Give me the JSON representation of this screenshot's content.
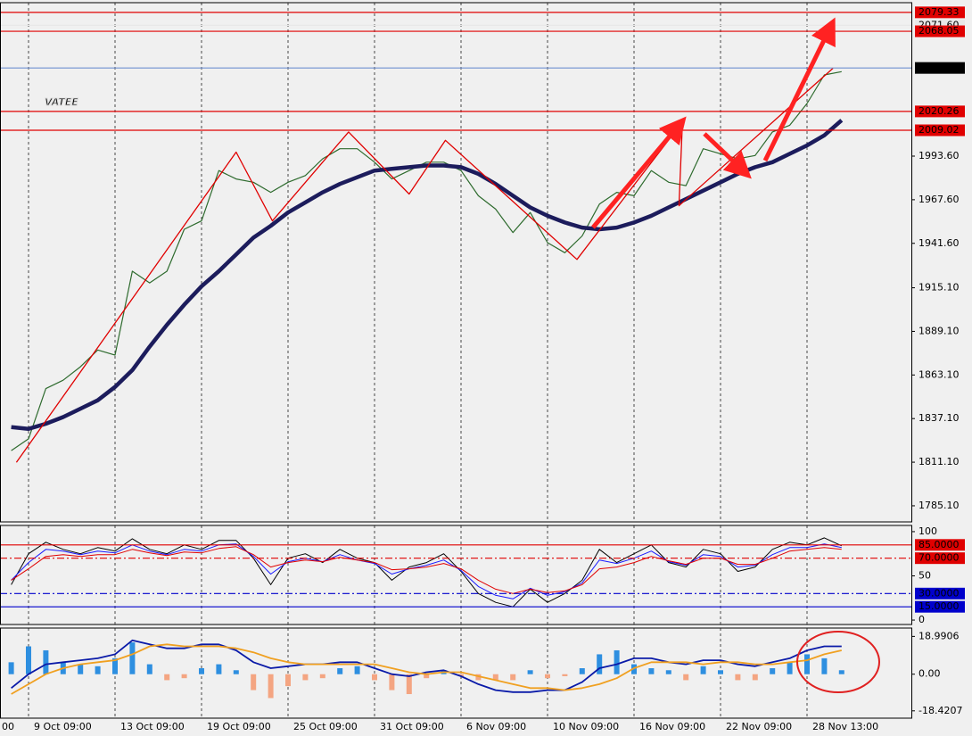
{
  "chart_data": [
    {
      "type": "line",
      "watermark": "VATEE",
      "ylim": [
        1775.5,
        2085.1
      ],
      "yticks": [
        {
          "value": 1785.1,
          "label": "1785.10"
        },
        {
          "value": 1811.1,
          "label": "1811.10"
        },
        {
          "value": 1837.1,
          "label": "1837.10"
        },
        {
          "value": 1863.1,
          "label": "1863.10"
        },
        {
          "value": 1889.1,
          "label": "1889.10"
        },
        {
          "value": 1915.1,
          "label": "1915.10"
        },
        {
          "value": 1941.6,
          "label": "1941.60"
        },
        {
          "value": 1967.6,
          "label": "1967.60"
        },
        {
          "value": 1993.6,
          "label": "1993.60"
        }
      ],
      "levels": [
        {
          "value": 2071.6,
          "label": "2071.60",
          "color": "#e8e8e8",
          "text_color": "#555555"
        },
        {
          "value": 2079.33,
          "color": "#e00000"
        },
        {
          "value": 2068.05,
          "color": "#e00000"
        },
        {
          "value": 2046.18,
          "color": "#000000",
          "line_color": "#6f8fd0"
        },
        {
          "value": 2020.26,
          "color": "#e00000"
        },
        {
          "value": 2009.02,
          "color": "#e00000"
        }
      ],
      "series": [
        {
          "color": "#2e6b2e",
          "width": 1.2,
          "values": [
            null,
            null,
            null,
            null,
            1818,
            1825,
            1855,
            1860,
            1868,
            1878,
            1875,
            1925,
            1918,
            1925,
            1950,
            1955,
            1985,
            1980,
            1978,
            1972,
            1978,
            1982,
            1992,
            1998,
            1998,
            1990,
            1980,
            1985,
            1990,
            1990,
            1985,
            1970,
            1962,
            1948,
            1960,
            1942,
            1936,
            1946,
            1965,
            1972,
            1970,
            1985,
            1978,
            1976,
            1998,
            1995,
            1992,
            1994,
            2008,
            2012,
            2025,
            2042,
            2044
          ]
        },
        {
          "color": "#1c1c5c",
          "width": 4.5,
          "values": [
            null,
            null,
            null,
            null,
            1832,
            1831,
            1834,
            1838,
            1843,
            1848,
            1856,
            1866,
            1880,
            1893,
            1905,
            1916,
            1925,
            1935,
            1945,
            1952,
            1960,
            1966,
            1972,
            1977,
            1981,
            1985,
            1986,
            1987,
            1988,
            1988,
            1987,
            1983,
            1977,
            1970,
            1963,
            1958,
            1954,
            1951,
            1950,
            1951,
            1954,
            1958,
            1963,
            1968,
            1973,
            1978,
            1983,
            1987,
            1990,
            1995,
            2000,
            2006,
            2015
          ]
        },
        {
          "color": "#e00000",
          "width": 1.3,
          "x": [
            4.3,
            17,
            19.1,
            23.5,
            27,
            29.1,
            36.7,
            42.8,
            42.6,
            51.5
          ],
          "values": [
            1811,
            1996,
            1955,
            2008,
            1971,
            2003,
            1932,
            2014,
            1964,
            2046
          ]
        }
      ]
    },
    {
      "type": "line",
      "ylim": [
        -5,
        107
      ],
      "yticks": [
        0,
        50,
        100
      ],
      "levels": [
        {
          "value": 85,
          "label": "85.0000",
          "color": "#e00000",
          "style": "solid"
        },
        {
          "value": 70,
          "label": "70.0000",
          "color": "#e00000",
          "style": "dashdot"
        },
        {
          "value": 30,
          "label": "30.0000",
          "color": "#0000cc",
          "style": "dashdot"
        },
        {
          "value": 15,
          "label": "15.0000",
          "color": "#0000cc",
          "style": "solid"
        }
      ],
      "series": [
        {
          "color": "#000000",
          "width": 1,
          "values": [
            null,
            null,
            null,
            null,
            40,
            75,
            88,
            80,
            75,
            82,
            78,
            92,
            80,
            75,
            85,
            80,
            90,
            90,
            70,
            40,
            70,
            75,
            65,
            80,
            70,
            65,
            45,
            60,
            65,
            75,
            55,
            30,
            20,
            15,
            35,
            20,
            30,
            45,
            80,
            65,
            75,
            85,
            65,
            60,
            80,
            75,
            55,
            60,
            80,
            88,
            85,
            93,
            84
          ]
        },
        {
          "color": "#1a1aff",
          "width": 1,
          "values": [
            null,
            null,
            null,
            null,
            45,
            65,
            80,
            78,
            74,
            78,
            76,
            85,
            78,
            74,
            80,
            78,
            85,
            86,
            72,
            52,
            66,
            70,
            66,
            74,
            68,
            64,
            52,
            58,
            62,
            68,
            56,
            38,
            28,
            24,
            36,
            28,
            32,
            42,
            68,
            64,
            70,
            78,
            66,
            62,
            74,
            72,
            60,
            62,
            74,
            82,
            82,
            86,
            82
          ]
        },
        {
          "color": "#e00000",
          "width": 1,
          "values": [
            null,
            null,
            null,
            null,
            45,
            58,
            72,
            74,
            72,
            74,
            74,
            80,
            76,
            73,
            77,
            76,
            81,
            83,
            74,
            60,
            65,
            68,
            66,
            71,
            68,
            65,
            57,
            58,
            60,
            64,
            58,
            45,
            35,
            30,
            35,
            31,
            33,
            40,
            58,
            60,
            65,
            72,
            67,
            63,
            70,
            70,
            63,
            63,
            70,
            78,
            80,
            82,
            80
          ]
        }
      ]
    },
    {
      "type": "bar",
      "ylim": [
        -22.1,
        23.2
      ],
      "yticks": [
        -18.4207,
        {
          "value": 0,
          "label": "0.00"
        },
        18.9906
      ],
      "categories": [
        "00",
        null,
        null,
        null,
        null,
        "9 Oct 09:00",
        null,
        null,
        null,
        null,
        "13 Oct 09:00",
        null,
        null,
        null,
        null,
        "19 Oct 09:00",
        null,
        null,
        null,
        null,
        "25 Oct 09:00",
        null,
        null,
        null,
        null,
        "31 Oct 09:00",
        null,
        null,
        null,
        null,
        "6 Nov 09:00",
        null,
        null,
        null,
        null,
        "10 Nov 09:00",
        null,
        null,
        null,
        null,
        "16 Nov 09:00",
        null,
        null,
        null,
        null,
        "22 Nov 09:00",
        null,
        null,
        null,
        null,
        "28 Nov 13:00",
        null,
        null
      ],
      "series": [
        {
          "type": "bar",
          "color": "#2e8fe0",
          "negative_color": "#f4a582",
          "values": [
            null,
            null,
            null,
            null,
            6,
            14,
            12,
            6,
            5,
            4,
            8,
            16,
            5,
            -3,
            -2,
            3,
            5,
            2,
            -8,
            -12,
            -6,
            -3,
            -2,
            3,
            4,
            -3,
            -8,
            -10,
            -2,
            2,
            -1,
            -3,
            -3,
            -3,
            2,
            -2,
            -1,
            3,
            10,
            12,
            5,
            3,
            2,
            -3,
            4,
            2,
            -3,
            -3,
            3,
            6,
            10,
            8,
            2
          ]
        },
        {
          "type": "line",
          "color": "#0a1aa8",
          "width": 1.8,
          "values": [
            null,
            null,
            null,
            null,
            -7,
            0,
            5,
            6,
            7,
            8,
            10,
            17,
            15,
            13,
            13,
            15,
            15,
            12,
            6,
            3,
            4,
            5,
            5,
            6,
            6,
            3,
            0,
            -1,
            1,
            2,
            -1,
            -5,
            -8,
            -9,
            -9,
            -8,
            -8,
            -4,
            3,
            5,
            8,
            8,
            6,
            5,
            7,
            7,
            5,
            4,
            6,
            8,
            12,
            14,
            14
          ]
        },
        {
          "type": "line",
          "color": "#f0a020",
          "width": 1.8,
          "values": [
            null,
            null,
            null,
            null,
            -10,
            -5,
            0,
            3,
            5,
            6,
            7,
            10,
            14,
            15,
            14,
            14,
            14,
            13,
            11,
            8,
            6,
            5,
            5,
            5,
            5,
            5,
            3,
            1,
            0,
            1,
            1,
            -1,
            -3,
            -5,
            -7,
            -7,
            -8,
            -7,
            -5,
            -2,
            3,
            6,
            6,
            6,
            5,
            6,
            6,
            5,
            5,
            6,
            7,
            10,
            12
          ]
        }
      ]
    }
  ]
}
